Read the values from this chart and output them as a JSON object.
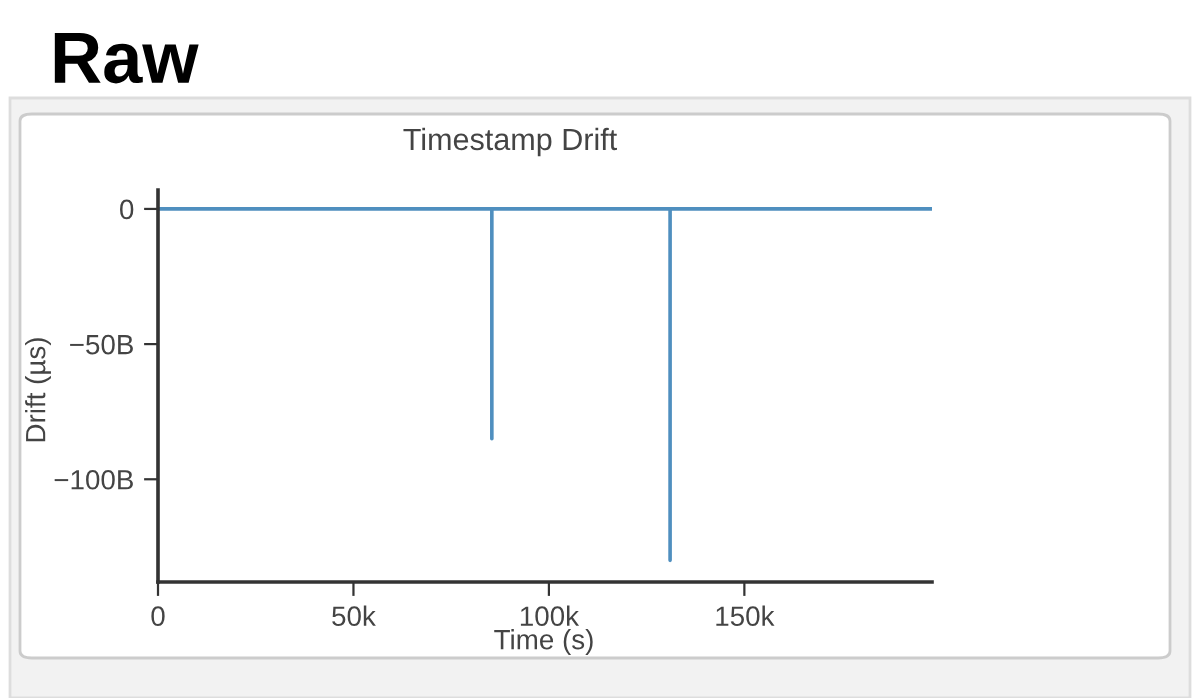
{
  "chart_data": {
    "type": "line",
    "title": "Raw",
    "subtitle": "Timestamp Drift",
    "xlabel": "Time (s)",
    "ylabel": "Drift (µs)",
    "series": [
      {
        "color": "#4f8fbf",
        "x": [
          0,
          85400,
          85400,
          85400,
          131000,
          131000,
          131000,
          198000
        ],
        "values": [
          0,
          0,
          -85,
          0,
          0,
          -130,
          0,
          0
        ]
      }
    ],
    "xlim": [
      0,
      198000
    ],
    "xticks": [
      0,
      {
        "value": 50000,
        "label": "50k"
      },
      {
        "value": 100000,
        "label": "100k"
      },
      {
        "value": 150000,
        "label": "150k"
      }
    ],
    "ylim": [
      -138,
      7
    ],
    "yticks": [
      0,
      {
        "value": -50,
        "label": "−50B"
      },
      {
        "value": -100,
        "label": "−100B"
      }
    ],
    "grid": false,
    "legend": false,
    "marker": "none",
    "line_style": "solid"
  }
}
